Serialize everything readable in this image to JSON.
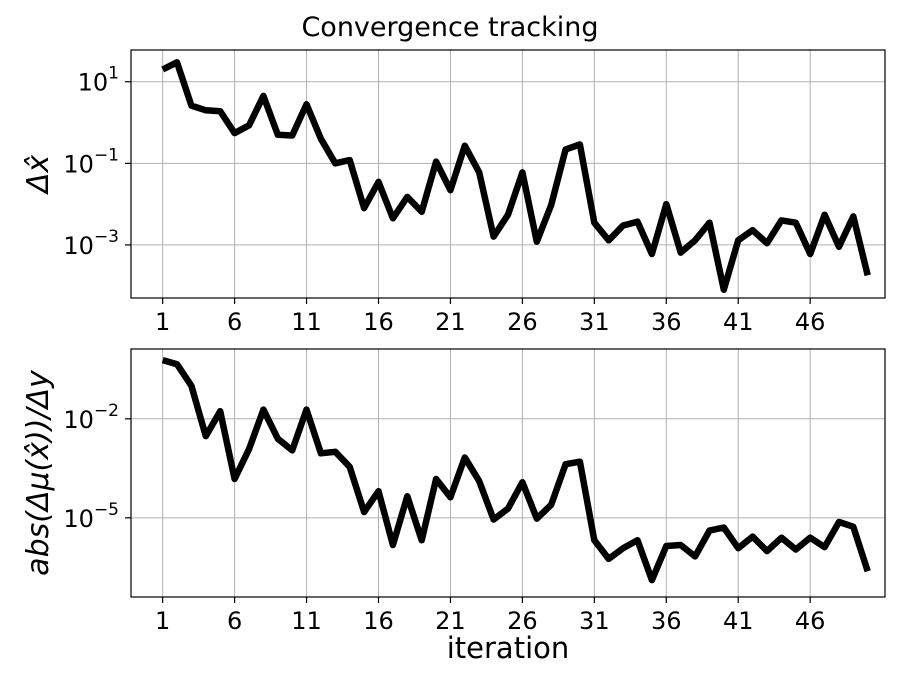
{
  "figure_title": "Convergence tracking",
  "colors": {
    "series": "#000000",
    "grid": "#b0b0b0"
  },
  "chart_data": [
    {
      "type": "line",
      "ylabel": "Δx̂",
      "xlabel": "",
      "yscale": "log",
      "ylim": [
        5e-05,
        60
      ],
      "xlim": [
        -1.2,
        51.2
      ],
      "grid": true,
      "x_ticks": [
        1,
        6,
        11,
        16,
        21,
        26,
        31,
        36,
        41,
        46
      ],
      "y_ticks": [
        {
          "value": 10,
          "base": "10",
          "exp": "1"
        },
        {
          "value": 0.1,
          "base": "10",
          "exp": "−1"
        },
        {
          "value": 0.001,
          "base": "10",
          "exp": "−3"
        }
      ],
      "series": [
        {
          "x": [
            1,
            2,
            3,
            4,
            5,
            6,
            7,
            8,
            9,
            10,
            11,
            12,
            13,
            14,
            15,
            16,
            17,
            18,
            19,
            20,
            21,
            22,
            23,
            24,
            25,
            26,
            27,
            28,
            29,
            30,
            31,
            32,
            33,
            34,
            35,
            36,
            37,
            38,
            39,
            40,
            41,
            42,
            43,
            44,
            45,
            46,
            47,
            48,
            49,
            50
          ],
          "values": [
            20,
            30,
            2.6,
            2.0,
            1.9,
            0.55,
            0.85,
            4.5,
            0.5,
            0.48,
            2.8,
            0.4,
            0.1,
            0.12,
            0.008,
            0.035,
            0.0045,
            0.015,
            0.0065,
            0.11,
            0.022,
            0.27,
            0.06,
            0.0016,
            0.0055,
            0.06,
            0.0012,
            0.0095,
            0.22,
            0.29,
            0.0035,
            0.0013,
            0.003,
            0.0037,
            0.0006,
            0.01,
            0.00065,
            0.0013,
            0.0035,
            8e-05,
            0.0013,
            0.0023,
            0.0011,
            0.004,
            0.0035,
            0.0006,
            0.0055,
            0.0009,
            0.005,
            0.00018
          ]
        }
      ]
    },
    {
      "type": "line",
      "ylabel": "abs(Δμ(x̂))/Δy",
      "xlabel": "iteration",
      "yscale": "log",
      "ylim": [
        4e-08,
        1.3
      ],
      "xlim": [
        -1.2,
        51.2
      ],
      "grid": true,
      "x_ticks": [
        1,
        6,
        11,
        16,
        21,
        26,
        31,
        36,
        41,
        46
      ],
      "y_ticks": [
        {
          "value": 0.01,
          "base": "10",
          "exp": "−2"
        },
        {
          "value": 1e-05,
          "base": "10",
          "exp": "−5"
        }
      ],
      "series": [
        {
          "x": [
            1,
            2,
            3,
            4,
            5,
            6,
            7,
            8,
            9,
            10,
            11,
            12,
            13,
            14,
            15,
            16,
            17,
            18,
            19,
            20,
            21,
            22,
            23,
            24,
            25,
            26,
            27,
            28,
            29,
            30,
            31,
            32,
            33,
            34,
            35,
            36,
            37,
            38,
            39,
            40,
            41,
            42,
            43,
            44,
            45,
            46,
            47,
            48,
            49,
            50
          ],
          "values": [
            0.6,
            0.45,
            0.1,
            0.003,
            0.017,
            0.00015,
            0.0012,
            0.019,
            0.0025,
            0.0011,
            0.019,
            0.0009,
            0.001,
            0.00035,
            1.5e-05,
            6.4e-05,
            1.5e-06,
            4.5e-05,
            2.1e-06,
            0.00015,
            4.2e-05,
            0.00067,
            0.00013,
            8.9e-06,
            1.9e-05,
            0.00012,
            9.5e-06,
            2.5e-05,
            0.00042,
            0.0005,
            2.1e-06,
            5.7e-07,
            1.2e-06,
            2.1e-06,
            1.3e-07,
            1.4e-06,
            1.5e-06,
            6.8e-07,
            4.1e-06,
            5.1e-06,
            1.2e-06,
            2.7e-06,
            9.8e-07,
            2.5e-06,
            1.1e-06,
            2.5e-06,
            1.3e-06,
            7.5e-06,
            5.4e-06,
            2.4e-07
          ]
        }
      ]
    }
  ]
}
